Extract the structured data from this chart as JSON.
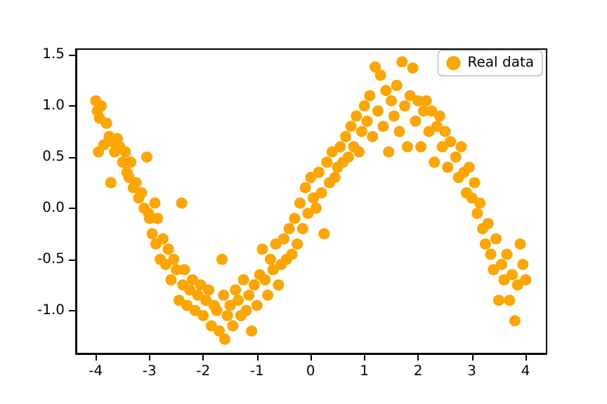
{
  "chart_data": {
    "type": "scatter",
    "marker": "circle",
    "grid": false,
    "legend": "top right",
    "xlim": [
      -4.37,
      4.39
    ],
    "ylim": [
      -1.42,
      1.555
    ],
    "xticks": [
      -4,
      -3,
      -2,
      -1,
      0,
      1,
      2,
      3,
      4
    ],
    "yticks": [
      {
        "value": -1,
        "label": "-1.0"
      },
      -0.5,
      {
        "value": 0,
        "label": "0.0"
      },
      0.5,
      {
        "value": 1,
        "label": "1.0"
      },
      1.5
    ],
    "series": [
      {
        "name": "Real data",
        "color": "#ffa500",
        "x": [
          -4.0,
          -3.97,
          -3.93,
          -3.95,
          -3.9,
          -3.85,
          -3.8,
          -3.75,
          -3.72,
          -3.7,
          -3.65,
          -3.6,
          -3.55,
          -3.5,
          -3.45,
          -3.42,
          -3.38,
          -3.35,
          -3.3,
          -3.25,
          -3.2,
          -3.15,
          -3.1,
          -3.05,
          -3.02,
          -3.0,
          -2.95,
          -2.9,
          -2.88,
          -2.85,
          -2.8,
          -2.75,
          -2.7,
          -2.65,
          -2.6,
          -2.55,
          -2.5,
          -2.45,
          -2.4,
          -2.38,
          -2.35,
          -2.3,
          -2.25,
          -2.2,
          -2.15,
          -2.1,
          -2.05,
          -2.0,
          -1.95,
          -1.9,
          -1.85,
          -1.8,
          -1.75,
          -1.7,
          -1.65,
          -1.62,
          -1.6,
          -1.55,
          -1.5,
          -1.45,
          -1.4,
          -1.35,
          -1.3,
          -1.25,
          -1.2,
          -1.15,
          -1.1,
          -1.05,
          -1.0,
          -0.95,
          -0.9,
          -0.85,
          -0.8,
          -0.75,
          -0.7,
          -0.65,
          -0.6,
          -0.55,
          -0.5,
          -0.45,
          -0.4,
          -0.35,
          -0.3,
          -0.25,
          -0.2,
          -0.15,
          -0.1,
          -0.05,
          0.0,
          0.05,
          0.1,
          0.15,
          0.2,
          0.25,
          0.3,
          0.35,
          0.4,
          0.45,
          0.5,
          0.55,
          0.6,
          0.65,
          0.7,
          0.75,
          0.8,
          0.85,
          0.9,
          0.95,
          1.0,
          1.05,
          1.1,
          1.15,
          1.2,
          1.25,
          1.3,
          1.35,
          1.4,
          1.45,
          1.5,
          1.55,
          1.6,
          1.65,
          1.7,
          1.75,
          1.8,
          1.85,
          1.9,
          1.95,
          2.0,
          2.05,
          2.1,
          2.15,
          2.2,
          2.25,
          2.3,
          2.35,
          2.4,
          2.45,
          2.5,
          2.55,
          2.6,
          2.7,
          2.75,
          2.8,
          2.85,
          2.9,
          2.95,
          3.0,
          3.05,
          3.1,
          3.15,
          3.2,
          3.25,
          3.3,
          3.35,
          3.4,
          3.45,
          3.5,
          3.55,
          3.6,
          3.65,
          3.7,
          3.75,
          3.8,
          3.85,
          3.9,
          3.95,
          4.0
        ],
        "values": [
          1.05,
          0.95,
          0.88,
          0.55,
          1.0,
          0.62,
          0.83,
          0.7,
          0.25,
          0.65,
          0.55,
          0.68,
          0.6,
          0.45,
          0.55,
          0.35,
          0.3,
          0.45,
          0.2,
          0.25,
          0.1,
          0.15,
          0.0,
          0.5,
          -0.05,
          -0.1,
          -0.25,
          0.05,
          -0.35,
          -0.1,
          -0.5,
          -0.3,
          -0.55,
          -0.4,
          -0.7,
          -0.5,
          -0.6,
          -0.9,
          0.05,
          -0.75,
          -0.6,
          -0.95,
          -0.8,
          -0.7,
          -1.0,
          -0.85,
          -0.75,
          -1.05,
          -0.9,
          -0.8,
          -1.15,
          -0.95,
          -1.0,
          -1.2,
          -0.5,
          -0.85,
          -1.28,
          -1.05,
          -0.95,
          -1.15,
          -0.8,
          -0.9,
          -1.05,
          -0.7,
          -1.0,
          -0.85,
          -1.2,
          -0.75,
          -0.95,
          -0.65,
          -0.4,
          -0.7,
          -0.85,
          -0.5,
          -0.6,
          -0.35,
          -0.75,
          -0.55,
          -0.3,
          -0.5,
          -0.2,
          -0.45,
          -0.1,
          -0.35,
          0.05,
          -0.2,
          0.2,
          -0.05,
          0.3,
          0.1,
          0.0,
          0.35,
          0.15,
          -0.25,
          0.45,
          0.25,
          0.55,
          0.3,
          0.4,
          0.6,
          0.45,
          0.7,
          0.5,
          0.8,
          0.6,
          0.9,
          0.55,
          0.75,
          1.0,
          0.85,
          1.1,
          0.7,
          1.38,
          0.95,
          1.3,
          0.8,
          1.15,
          0.55,
          1.05,
          0.9,
          1.2,
          0.75,
          1.43,
          1.0,
          0.6,
          1.1,
          1.37,
          0.85,
          1.05,
          0.6,
          0.95,
          1.05,
          0.75,
          0.95,
          0.45,
          0.8,
          0.9,
          0.6,
          0.75,
          0.4,
          0.65,
          0.5,
          0.3,
          0.6,
          0.35,
          0.15,
          0.4,
          0.1,
          0.25,
          -0.05,
          0.05,
          -0.2,
          -0.35,
          -0.15,
          -0.45,
          -0.6,
          -0.3,
          -0.9,
          -0.55,
          -0.7,
          -0.45,
          -0.9,
          -0.65,
          -1.1,
          -0.75,
          -0.35,
          -0.55,
          -0.7
        ]
      }
    ]
  }
}
